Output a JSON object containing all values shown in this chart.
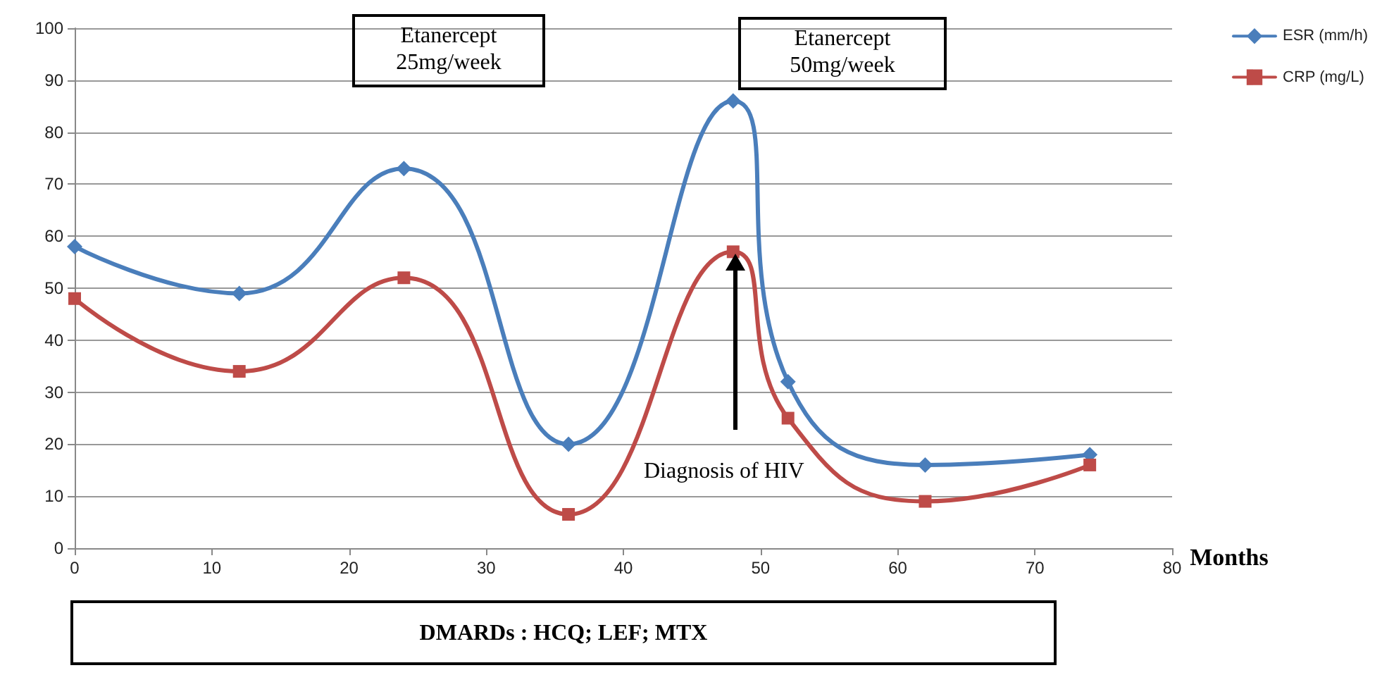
{
  "chart_data": {
    "type": "line",
    "xlabel": "Months",
    "x": [
      0,
      12,
      24,
      36,
      48,
      52,
      62,
      74
    ],
    "series": [
      {
        "name": "ESR (mm/h)",
        "color": "#4a7ebb",
        "marker": "diamond",
        "values": [
          58,
          49,
          73,
          20,
          86,
          32,
          16,
          18
        ]
      },
      {
        "name": "CRP (mg/L)",
        "color": "#be4b48",
        "marker": "square",
        "values": [
          48,
          34,
          52,
          6.5,
          57,
          25,
          9,
          16
        ]
      }
    ],
    "xlim": [
      0,
      80
    ],
    "xticks": [
      0,
      10,
      20,
      30,
      40,
      50,
      60,
      70,
      80
    ],
    "ylim": [
      0,
      100
    ],
    "yticks": [
      0,
      10,
      20,
      30,
      40,
      50,
      60,
      70,
      80,
      90,
      100
    ],
    "grid": "y",
    "legend": "top right",
    "annotations": [
      "Etanercept\n25mg/week",
      "Etanercept\n50mg/week",
      "DMARDs : HCQ; LEF; MTX",
      "Diagnosis of HIV"
    ]
  }
}
